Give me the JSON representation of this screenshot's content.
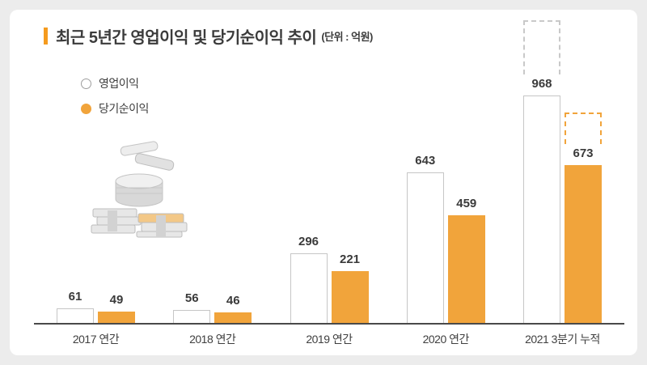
{
  "header": {
    "title": "최근 5년간 영업이익 및 당기순이익 추이",
    "unit": "(단위 : 억원)"
  },
  "legend": {
    "items": [
      {
        "label": "영업이익",
        "swatch": "white-outlined"
      },
      {
        "label": "당기순이익",
        "swatch": "orange"
      }
    ]
  },
  "chart_data": {
    "type": "bar",
    "title": "최근 5년간 영업이익 및 당기순이익 추이",
    "unit": "억원",
    "categories": [
      "2017 연간",
      "2018 연간",
      "2019 연간",
      "2020 연간",
      "2021 3분기 누적"
    ],
    "series": [
      {
        "name": "영업이익",
        "color": "#ffffff",
        "border": "#c6c6c6",
        "values": [
          61,
          56,
          296,
          643,
          968
        ]
      },
      {
        "name": "당기순이익",
        "color": "#f1a43b",
        "values": [
          49,
          46,
          221,
          459,
          673
        ]
      }
    ],
    "ylim": [
      0,
      1300
    ],
    "grid": false,
    "legend_position": "top-left",
    "annotations": [
      {
        "type": "dashed-projection-outline",
        "category_index": 4,
        "factor": 1.3333
      }
    ]
  },
  "colors": {
    "background": "#ececec",
    "card": "#ffffff",
    "orange": "#f1a43b",
    "title_marker": "#f59b1e",
    "axis": "#4a4a4a",
    "text": "#3b3b3b",
    "bar_border": "#c6c6c6",
    "dashed_gray": "#c9c9c9"
  }
}
